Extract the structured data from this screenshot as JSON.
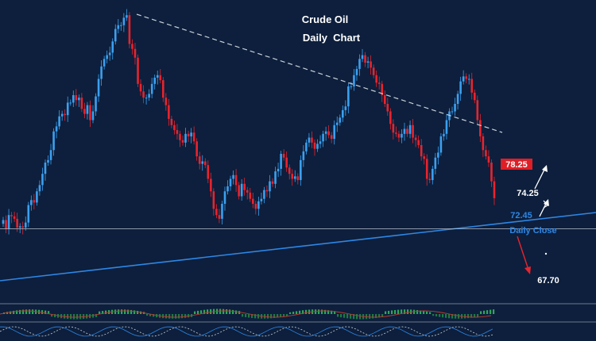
{
  "chart_data": {
    "type": "candlestick",
    "title": "Crude Oil",
    "subtitle": "Daily  Chart",
    "y_range": [
      64,
      88
    ],
    "colors": {
      "background": "#0d1f3c",
      "bull": "#3ba0f0",
      "bear": "#e8242e",
      "trendline_upper": "#c9d1da",
      "trendline_lower": "#2e86e6",
      "close_line": "#b8c2cc",
      "text": "#ffffff",
      "price_box": "#e01e26",
      "label_blue": "#2e86e6",
      "indicator_bull": "#2fa65a",
      "indicator_bear": "#c0392b"
    },
    "candles_close": [
      70.7,
      70.0,
      71.1,
      71.0,
      70.8,
      70.1,
      70.2,
      70.1,
      70.5,
      71.9,
      72.3,
      72.1,
      73.0,
      73.5,
      74.4,
      75.3,
      75.5,
      76.3,
      77.8,
      78.2,
      79.0,
      79.2,
      79.1,
      80.1,
      80.1,
      80.7,
      80.3,
      80.5,
      79.6,
      79.2,
      79.9,
      78.7,
      79.4,
      80.6,
      82.0,
      83.0,
      83.6,
      83.9,
      84.1,
      85.0,
      86.0,
      86.3,
      86.3,
      86.9,
      87.1,
      84.8,
      84.4,
      83.7,
      81.6,
      81.0,
      80.5,
      80.5,
      80.8,
      81.6,
      82.1,
      82.3,
      81.9,
      80.5,
      79.9,
      78.8,
      78.3,
      77.9,
      77.6,
      77.1,
      76.9,
      77.6,
      77.4,
      77.7,
      77.0,
      75.8,
      75.2,
      75.4,
      75.1,
      74.0,
      73.0,
      71.6,
      71.1,
      70.8,
      72.0,
      73.0,
      73.4,
      74.0,
      74.3,
      73.5,
      72.6,
      73.6,
      73.1,
      72.9,
      72.4,
      72.0,
      71.6,
      72.2,
      72.4,
      73.1,
      73.0,
      73.8,
      73.6,
      74.6,
      74.8,
      76.0,
      75.7,
      74.9,
      74.4,
      74.0,
      74.2,
      73.9,
      75.5,
      76.2,
      76.9,
      77.3,
      76.9,
      76.4,
      76.8,
      77.0,
      77.6,
      77.8,
      77.5,
      77.2,
      78.3,
      78.5,
      78.9,
      79.5,
      79.8,
      81.4,
      81.4,
      82.3,
      82.8,
      83.6,
      83.9,
      83.3,
      83.4,
      82.9,
      82.3,
      81.7,
      81.6,
      80.7,
      80.0,
      79.4,
      78.4,
      77.7,
      77.6,
      77.3,
      77.6,
      78.0,
      77.6,
      78.3,
      77.3,
      77.1,
      76.7,
      75.8,
      75.6,
      74.0,
      73.9,
      74.8,
      75.7,
      76.1,
      77.4,
      77.6,
      78.7,
      79.4,
      79.4,
      80.0,
      80.8,
      81.8,
      82.2,
      82.0,
      82.0,
      80.9,
      80.3,
      78.7,
      77.4,
      76.3,
      75.8,
      75.3,
      73.8,
      72.45
    ],
    "annotations": {
      "resistance_price": "78.25",
      "mid_price": "74.25",
      "close_price": "72.45",
      "close_label": "Daily Close",
      "target_price": "67.70"
    }
  }
}
